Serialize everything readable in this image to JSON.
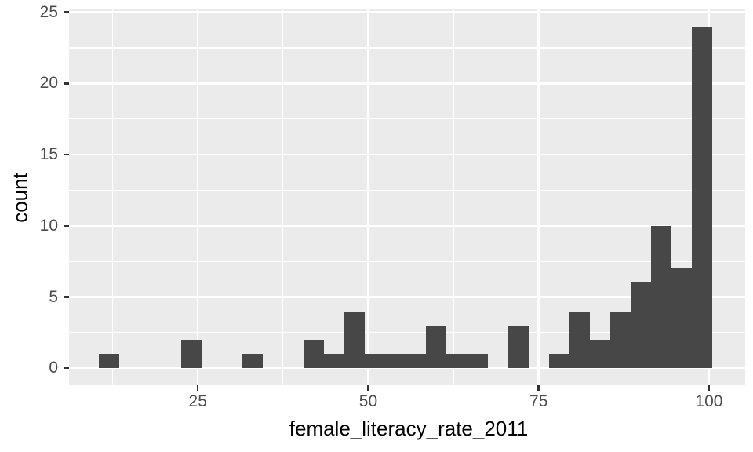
{
  "chart_data": {
    "type": "bar",
    "subtype": "histogram",
    "title": "",
    "xlabel": "female_literacy_rate_2011",
    "ylabel": "count",
    "bin_start": 10.5,
    "bin_width": 3,
    "counts": [
      1,
      0,
      0,
      0,
      2,
      0,
      0,
      1,
      0,
      0,
      2,
      1,
      4,
      1,
      1,
      1,
      3,
      1,
      1,
      0,
      3,
      0,
      1,
      4,
      2,
      4,
      6,
      10,
      7,
      24
    ],
    "x_ticks": [
      25,
      50,
      75,
      100
    ],
    "x_tick_labels": [
      "25",
      "50",
      "75",
      "100"
    ],
    "y_ticks": [
      0,
      5,
      10,
      15,
      20,
      25
    ],
    "y_tick_labels": [
      "0",
      "5",
      "10",
      "15",
      "20",
      "25"
    ],
    "x_minor_gridlines": [
      12.5,
      37.5,
      62.5,
      87.5
    ],
    "y_minor_gridlines": [
      2.5,
      7.5,
      12.5,
      17.5,
      22.5
    ],
    "xlim": [
      6.1,
      105.3
    ],
    "ylim": [
      -1.2,
      25.2
    ],
    "grid": true,
    "legend": "none",
    "colors": {
      "bar_fill": "#474747",
      "panel_background": "#EBEBEB",
      "gridline": "#FFFFFF",
      "tick_label": "#4D4D4D",
      "axis_title": "#000000",
      "tick_mark": "#333333",
      "figure_background": "#FFFFFF"
    }
  }
}
